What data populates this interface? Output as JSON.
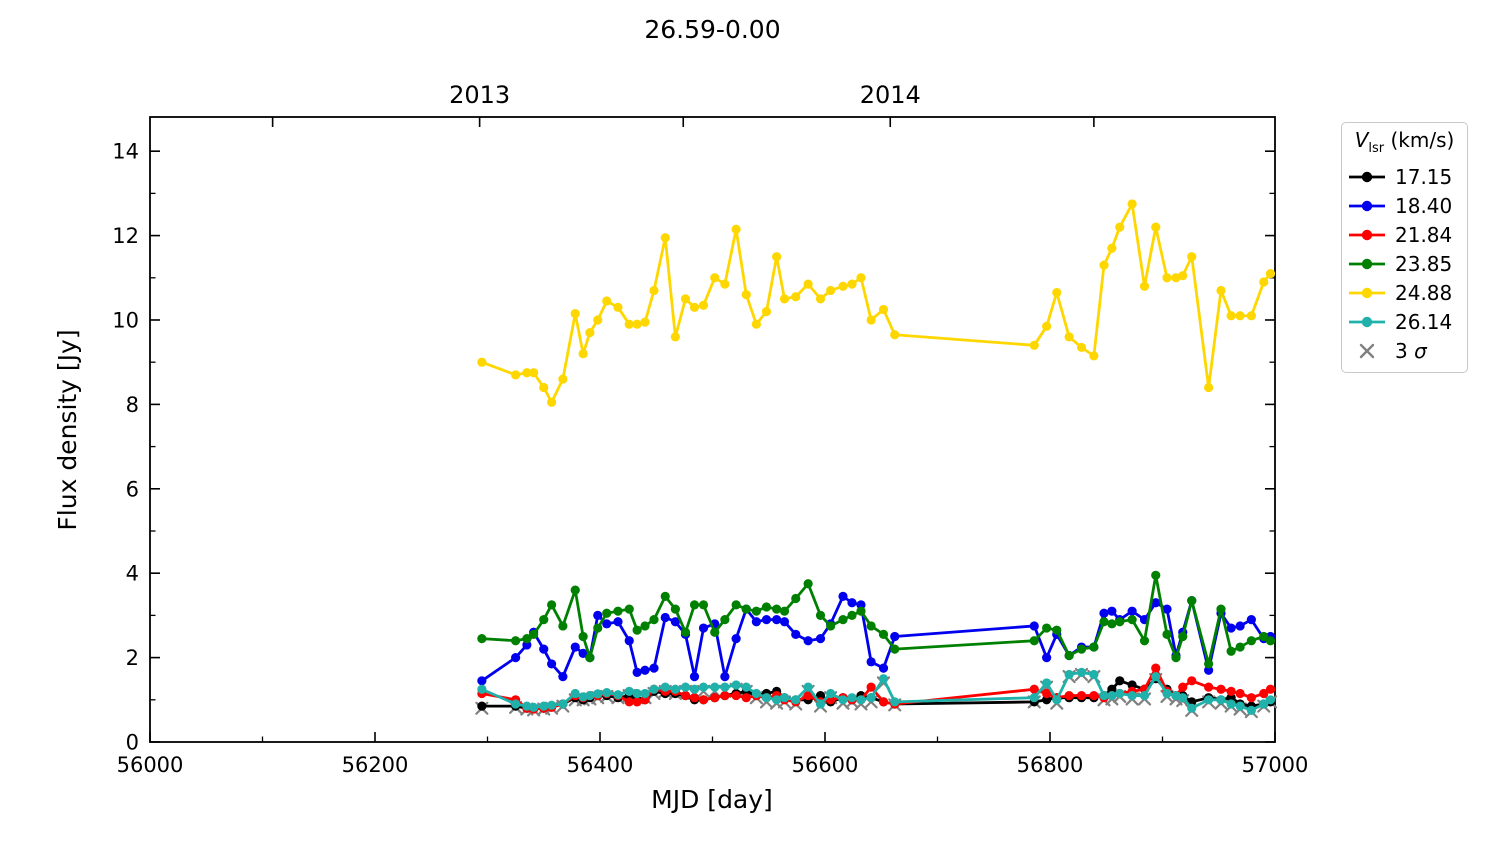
{
  "title": "26.59-0.00",
  "axes": {
    "xlabel": "MJD [day]",
    "ylabel": "Flux density [Jy]",
    "xlim": [
      56000,
      57000
    ],
    "ylim": [
      0,
      14.81
    ],
    "x_major_ticks": [
      56000,
      56200,
      56400,
      56600,
      56800,
      57000
    ],
    "x_minor_ticks": [
      56100,
      56300,
      56500,
      56700,
      56900
    ],
    "y_major_ticks": [
      0,
      2,
      4,
      6,
      8,
      10,
      12,
      14
    ],
    "y_minor_ticks": [
      1,
      3,
      5,
      7,
      9,
      11,
      13
    ],
    "top_ticks": [
      {
        "mjd": 56109,
        "label": ""
      },
      {
        "mjd": 56293,
        "label": "2013"
      },
      {
        "mjd": 56474,
        "label": ""
      },
      {
        "mjd": 56658,
        "label": "2014"
      },
      {
        "mjd": 56839,
        "label": ""
      }
    ]
  },
  "legend": {
    "title": "V_lsr (km/s)",
    "title_parts": {
      "var": "V",
      "sub": "lsr",
      "unit": " (km/s)"
    },
    "entries": [
      {
        "label": "17.15",
        "color": "#000000",
        "marker": "circle"
      },
      {
        "label": "18.40",
        "color": "#0000ee",
        "marker": "circle"
      },
      {
        "label": "21.84",
        "color": "#ff0000",
        "marker": "circle"
      },
      {
        "label": "23.85",
        "color": "#008000",
        "marker": "circle"
      },
      {
        "label": "24.88",
        "color": "#ffd700",
        "marker": "circle"
      },
      {
        "label": "26.14",
        "color": "#20b2aa",
        "marker": "circle"
      },
      {
        "label": "3 σ",
        "prefix": "3 ",
        "symbol": "σ",
        "color": "#808080",
        "marker": "x"
      }
    ]
  },
  "chart_data": {
    "type": "line",
    "title": "26.59-0.00",
    "xlabel": "MJD [day]",
    "ylabel": "Flux density [Jy]",
    "xlim": [
      56000,
      57000
    ],
    "ylim": [
      0,
      14.81
    ],
    "grid": false,
    "legend_position": "outside-right",
    "legend_title": "V_lsr (km/s)",
    "top_axis_year_labels": [
      "2013",
      "2014"
    ],
    "x": [
      56295,
      56325,
      56335,
      56341,
      56350,
      56357,
      56367,
      56378,
      56385,
      56391,
      56398,
      56406,
      56416,
      56426,
      56433,
      56440,
      56448,
      56458,
      56467,
      56476,
      56484,
      56492,
      56502,
      56511,
      56521,
      56530,
      56539,
      56548,
      56557,
      56564,
      56574,
      56585,
      56596,
      56605,
      56616,
      56624,
      56632,
      56641,
      56652,
      56662,
      56786,
      56797,
      56806,
      56817,
      56828,
      56839,
      56848,
      56855,
      56862,
      56873,
      56884,
      56894,
      56904,
      56912,
      56918,
      56926,
      56941,
      56952,
      56961,
      56969,
      56979,
      56990,
      56996
    ],
    "series": [
      {
        "name": "17.15",
        "color": "#000000",
        "marker": "circle",
        "line": true,
        "values": [
          0.85,
          0.85,
          0.8,
          0.8,
          0.8,
          0.85,
          0.9,
          1.05,
          1.0,
          1.05,
          1.1,
          1.1,
          1.05,
          1.1,
          1.0,
          1.0,
          1.2,
          1.15,
          1.15,
          1.1,
          1.0,
          1.0,
          1.05,
          1.1,
          1.15,
          1.2,
          1.1,
          1.15,
          1.2,
          1.05,
          1.0,
          1.0,
          1.1,
          0.95,
          1.05,
          1.0,
          1.1,
          1.05,
          0.95,
          0.9,
          0.95,
          1.0,
          1.05,
          1.05,
          1.05,
          1.05,
          1.1,
          1.25,
          1.45,
          1.35,
          1.25,
          1.5,
          1.25,
          1.1,
          1.1,
          0.95,
          1.05,
          1.0,
          1.05,
          0.9,
          0.85,
          0.9,
          0.95
        ]
      },
      {
        "name": "18.40",
        "color": "#0000ee",
        "marker": "circle",
        "line": true,
        "values": [
          1.45,
          2.0,
          2.3,
          2.6,
          2.2,
          1.85,
          1.55,
          2.25,
          2.1,
          2.0,
          3.0,
          2.8,
          2.85,
          2.4,
          1.65,
          1.7,
          1.75,
          2.95,
          2.85,
          2.55,
          1.55,
          2.7,
          2.8,
          1.55,
          2.45,
          3.15,
          2.85,
          2.9,
          2.9,
          2.85,
          2.55,
          2.4,
          2.45,
          2.8,
          3.45,
          3.3,
          3.25,
          1.9,
          1.75,
          2.5,
          2.75,
          2.0,
          2.55,
          2.05,
          2.25,
          2.25,
          3.05,
          3.1,
          2.9,
          3.1,
          2.9,
          3.3,
          3.15,
          2.05,
          2.6,
          3.35,
          1.7,
          3.05,
          2.7,
          2.75,
          2.9,
          2.45,
          2.5
        ]
      },
      {
        "name": "21.84",
        "color": "#ff0000",
        "marker": "circle",
        "line": true,
        "values": [
          1.15,
          1.0,
          0.8,
          0.78,
          0.8,
          0.82,
          0.9,
          1.1,
          1.05,
          1.1,
          1.1,
          1.15,
          1.1,
          0.95,
          0.95,
          1.0,
          1.25,
          1.2,
          1.2,
          1.1,
          1.05,
          1.0,
          1.05,
          1.1,
          1.1,
          1.05,
          1.1,
          1.05,
          1.1,
          1.0,
          0.95,
          1.1,
          0.95,
          1.0,
          1.05,
          1.0,
          1.0,
          1.3,
          0.95,
          0.9,
          1.25,
          1.15,
          1.05,
          1.1,
          1.1,
          1.1,
          1.05,
          1.1,
          1.15,
          1.2,
          1.25,
          1.75,
          1.2,
          1.1,
          1.3,
          1.45,
          1.3,
          1.25,
          1.2,
          1.15,
          1.05,
          1.15,
          1.25
        ]
      },
      {
        "name": "23.85",
        "color": "#008000",
        "marker": "circle",
        "line": true,
        "values": [
          2.45,
          2.4,
          2.45,
          2.55,
          2.9,
          3.25,
          2.75,
          3.6,
          2.5,
          2.0,
          2.7,
          3.05,
          3.1,
          3.15,
          2.65,
          2.75,
          2.9,
          3.45,
          3.15,
          2.6,
          3.25,
          3.25,
          2.6,
          2.9,
          3.25,
          3.15,
          3.1,
          3.2,
          3.15,
          3.1,
          3.4,
          3.75,
          3.0,
          2.75,
          2.9,
          3.0,
          3.1,
          2.75,
          2.55,
          2.2,
          2.4,
          2.7,
          2.65,
          2.05,
          2.2,
          2.25,
          2.85,
          2.8,
          2.85,
          2.9,
          2.4,
          3.95,
          2.55,
          2.0,
          2.5,
          3.35,
          1.85,
          3.15,
          2.15,
          2.25,
          2.4,
          2.5,
          2.4
        ]
      },
      {
        "name": "24.88",
        "color": "#ffd700",
        "marker": "circle",
        "line": true,
        "values": [
          9.0,
          8.7,
          8.75,
          8.75,
          8.4,
          8.05,
          8.6,
          10.15,
          9.2,
          9.7,
          10.0,
          10.45,
          10.3,
          9.9,
          9.9,
          9.95,
          10.7,
          11.95,
          9.6,
          10.5,
          10.3,
          10.35,
          11.0,
          10.85,
          12.15,
          10.6,
          9.9,
          10.2,
          11.5,
          10.5,
          10.55,
          10.85,
          10.5,
          10.7,
          10.8,
          10.85,
          11.0,
          10.0,
          10.25,
          9.65,
          9.4,
          9.85,
          10.65,
          9.6,
          9.35,
          9.15,
          11.3,
          11.7,
          12.2,
          12.75,
          10.8,
          12.2,
          11.0,
          11.0,
          11.05,
          11.5,
          8.4,
          10.7,
          10.1,
          10.1,
          10.1,
          10.9,
          11.1
        ]
      },
      {
        "name": "26.14",
        "color": "#20b2aa",
        "marker": "circle",
        "line": true,
        "values": [
          1.25,
          0.9,
          0.85,
          0.82,
          0.85,
          0.87,
          0.9,
          1.15,
          1.07,
          1.1,
          1.14,
          1.17,
          1.12,
          1.2,
          1.15,
          1.15,
          1.25,
          1.3,
          1.25,
          1.3,
          1.25,
          1.3,
          1.3,
          1.3,
          1.35,
          1.3,
          1.15,
          1.05,
          1.0,
          1.05,
          1.0,
          1.3,
          0.9,
          1.15,
          1.0,
          1.05,
          1.0,
          1.05,
          1.5,
          0.95,
          1.05,
          1.4,
          1.0,
          1.6,
          1.65,
          1.6,
          1.1,
          1.1,
          1.15,
          1.1,
          1.1,
          1.55,
          1.15,
          1.1,
          1.05,
          0.8,
          1.0,
          1.0,
          0.9,
          0.85,
          0.75,
          0.9,
          1.0
        ]
      },
      {
        "name": "3 sigma",
        "color": "#808080",
        "marker": "x",
        "line": false,
        "values": [
          0.8,
          0.82,
          0.78,
          0.76,
          0.78,
          0.8,
          0.85,
          1.0,
          1.0,
          1.02,
          1.05,
          1.08,
          1.05,
          1.1,
          1.05,
          1.05,
          1.15,
          1.2,
          1.15,
          1.2,
          1.15,
          1.2,
          1.2,
          1.2,
          1.25,
          1.2,
          1.05,
          0.95,
          0.92,
          0.95,
          0.9,
          1.2,
          0.85,
          1.05,
          0.92,
          0.95,
          0.9,
          0.95,
          1.4,
          0.88,
          0.95,
          1.3,
          0.92,
          1.55,
          1.6,
          1.55,
          1.0,
          1.02,
          1.08,
          1.02,
          1.02,
          1.48,
          1.08,
          1.02,
          0.98,
          0.75,
          0.95,
          0.92,
          0.85,
          0.78,
          0.72,
          0.85,
          0.95
        ]
      }
    ]
  }
}
